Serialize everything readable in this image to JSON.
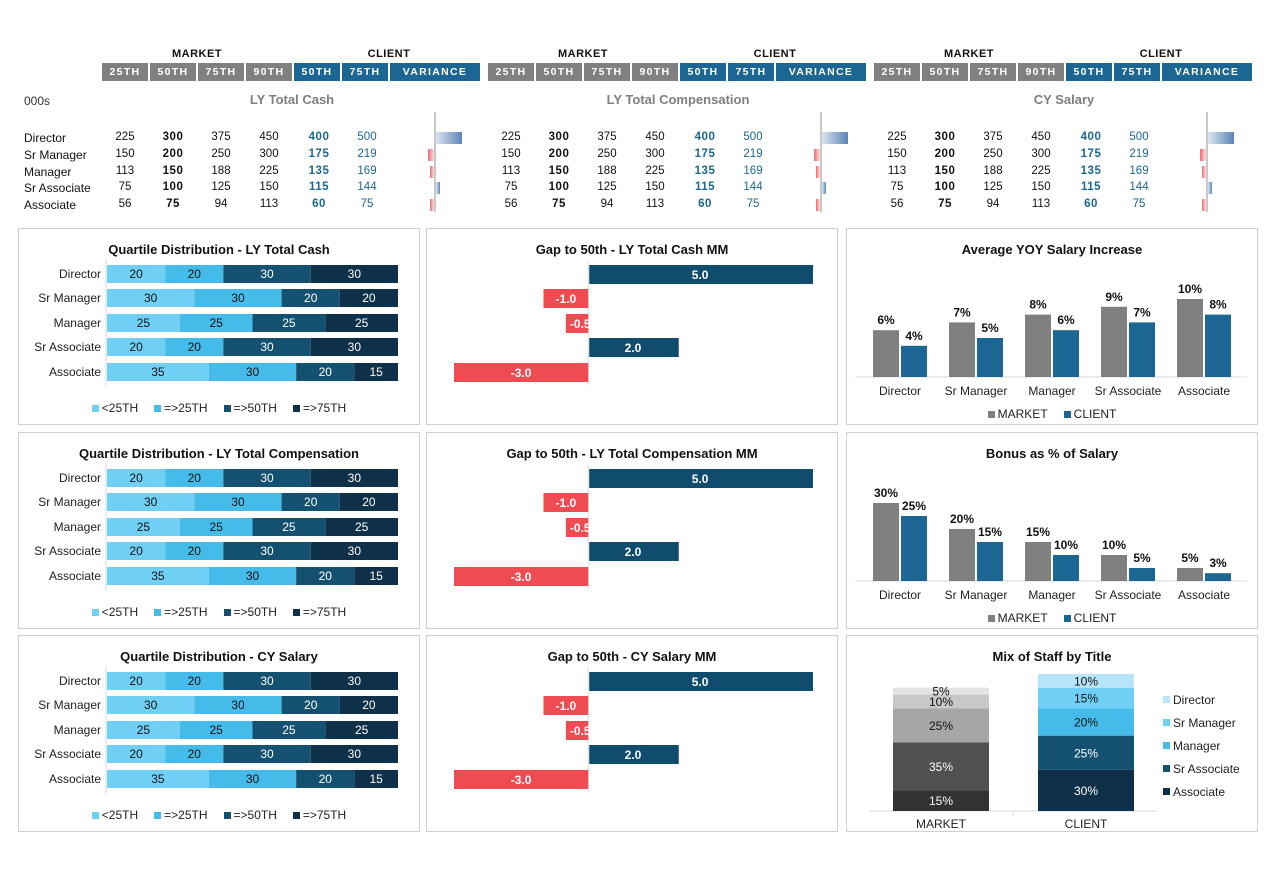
{
  "tables": [
    {
      "title": "LY Total Cash",
      "market_label": "MARKET",
      "client_label": "CLIENT",
      "headers": [
        "25TH",
        "50TH",
        "75TH",
        "90TH",
        "50TH",
        "75TH",
        "VARIANCE"
      ],
      "rows": [
        {
          "title": "Director",
          "m25": "225",
          "m50": "300",
          "m75": "375",
          "m90": "450",
          "c50": "400",
          "c75": "500",
          "variance": 100
        },
        {
          "title": "Sr Manager",
          "m25": "150",
          "m50": "200",
          "m75": "250",
          "m90": "300",
          "c50": "175",
          "c75": "219",
          "variance": -25
        },
        {
          "title": "Manager",
          "m25": "113",
          "m50": "150",
          "m75": "188",
          "m90": "225",
          "c50": "135",
          "c75": "169",
          "variance": -15
        },
        {
          "title": "Sr Associate",
          "m25": "75",
          "m50": "100",
          "m75": "125",
          "m90": "150",
          "c50": "115",
          "c75": "144",
          "variance": 15
        },
        {
          "title": "Associate",
          "m25": "56",
          "m50": "75",
          "m75": "94",
          "m90": "113",
          "c50": "60",
          "c75": "75",
          "variance": -15
        }
      ]
    },
    {
      "title": "LY Total Compensation",
      "market_label": "MARKET",
      "client_label": "CLIENT",
      "headers": [
        "25TH",
        "50TH",
        "75TH",
        "90TH",
        "50TH",
        "75TH",
        "VARIANCE"
      ],
      "rows": [
        {
          "title": "Director",
          "m25": "225",
          "m50": "300",
          "m75": "375",
          "m90": "450",
          "c50": "400",
          "c75": "500",
          "variance": 100
        },
        {
          "title": "Sr Manager",
          "m25": "150",
          "m50": "200",
          "m75": "250",
          "m90": "300",
          "c50": "175",
          "c75": "219",
          "variance": -25
        },
        {
          "title": "Manager",
          "m25": "113",
          "m50": "150",
          "m75": "188",
          "m90": "225",
          "c50": "135",
          "c75": "169",
          "variance": -15
        },
        {
          "title": "Sr Associate",
          "m25": "75",
          "m50": "100",
          "m75": "125",
          "m90": "150",
          "c50": "115",
          "c75": "144",
          "variance": 15
        },
        {
          "title": "Associate",
          "m25": "56",
          "m50": "75",
          "m75": "94",
          "m90": "113",
          "c50": "60",
          "c75": "75",
          "variance": -15
        }
      ]
    },
    {
      "title": "CY Salary",
      "market_label": "MARKET",
      "client_label": "CLIENT",
      "headers": [
        "25TH",
        "50TH",
        "75TH",
        "90TH",
        "50TH",
        "75TH",
        "VARIANCE"
      ],
      "rows": [
        {
          "title": "Director",
          "m25": "225",
          "m50": "300",
          "m75": "375",
          "m90": "450",
          "c50": "400",
          "c75": "500",
          "variance": 100
        },
        {
          "title": "Sr Manager",
          "m25": "150",
          "m50": "200",
          "m75": "250",
          "m90": "300",
          "c50": "175",
          "c75": "219",
          "variance": -25
        },
        {
          "title": "Manager",
          "m25": "113",
          "m50": "150",
          "m75": "188",
          "m90": "225",
          "c50": "135",
          "c75": "169",
          "variance": -15
        },
        {
          "title": "Sr Associate",
          "m25": "75",
          "m50": "100",
          "m75": "125",
          "m90": "150",
          "c50": "115",
          "c75": "144",
          "variance": 15
        },
        {
          "title": "Associate",
          "m25": "56",
          "m50": "75",
          "m75": "94",
          "m90": "113",
          "c50": "60",
          "c75": "75",
          "variance": -15
        }
      ]
    }
  ],
  "units_label": "000s",
  "colors": {
    "market_gray": "#808080",
    "client_blue": "#1b6692",
    "q1": "#6fcff5",
    "q2": "#45bbea",
    "q3": "#145171",
    "q4": "#0e3149",
    "gap_pos": "#0f4c6e",
    "gap_neg": "#ef4b53",
    "positive_var": "#5b84b8",
    "negative_var": "#ef6b72"
  },
  "chart_data": [
    {
      "id": "quartile-ly-cash",
      "type": "bar",
      "orientation": "horizontal-stacked",
      "title": "Quartile Distribution  - LY Total Cash",
      "categories": [
        "Director",
        "Sr Manager",
        "Manager",
        "Sr Associate",
        "Associate"
      ],
      "series": [
        {
          "name": "<25TH",
          "values": [
            20,
            30,
            25,
            20,
            35
          ]
        },
        {
          "name": "=>25TH",
          "values": [
            20,
            30,
            25,
            20,
            30
          ]
        },
        {
          "name": "=>50TH",
          "values": [
            30,
            20,
            25,
            30,
            20
          ]
        },
        {
          "name": "=>75TH",
          "values": [
            30,
            20,
            25,
            30,
            15
          ]
        }
      ],
      "legend": "bottom"
    },
    {
      "id": "gap-ly-cash",
      "type": "bar",
      "orientation": "horizontal",
      "title": "Gap to 50th - LY Total Cash MM",
      "categories": [
        "Director",
        "Sr Manager",
        "Manager",
        "Sr Associate",
        "Associate"
      ],
      "values": [
        5.0,
        -1.0,
        -0.5,
        2.0,
        -3.0
      ],
      "labels": [
        "5.0",
        "-1.0",
        "-0.5",
        "2.0",
        "-3.0"
      ],
      "xlim": [
        -3,
        5
      ]
    },
    {
      "id": "yoy-increase",
      "type": "bar",
      "title": "Average YOY Salary Increase",
      "categories": [
        "Director",
        "Sr Manager",
        "Manager",
        "Sr Associate",
        "Associate"
      ],
      "series": [
        {
          "name": "MARKET",
          "values": [
            6,
            7,
            8,
            9,
            10
          ]
        },
        {
          "name": "CLIENT",
          "values": [
            4,
            5,
            6,
            7,
            8
          ]
        }
      ],
      "value_suffix": "%",
      "ylim": [
        0,
        10
      ],
      "legend": "bottom"
    },
    {
      "id": "quartile-ly-comp",
      "type": "bar",
      "orientation": "horizontal-stacked",
      "title": "Quartile Distribution  - LY Total Compensation",
      "categories": [
        "Director",
        "Sr Manager",
        "Manager",
        "Sr Associate",
        "Associate"
      ],
      "series": [
        {
          "name": "<25TH",
          "values": [
            20,
            30,
            25,
            20,
            35
          ]
        },
        {
          "name": "=>25TH",
          "values": [
            20,
            30,
            25,
            20,
            30
          ]
        },
        {
          "name": "=>50TH",
          "values": [
            30,
            20,
            25,
            30,
            20
          ]
        },
        {
          "name": "=>75TH",
          "values": [
            30,
            20,
            25,
            30,
            15
          ]
        }
      ],
      "legend": "bottom"
    },
    {
      "id": "gap-ly-comp",
      "type": "bar",
      "orientation": "horizontal",
      "title": "Gap to 50th - LY Total Compensation MM",
      "categories": [
        "Director",
        "Sr Manager",
        "Manager",
        "Sr Associate",
        "Associate"
      ],
      "values": [
        5.0,
        -1.0,
        -0.5,
        2.0,
        -3.0
      ],
      "labels": [
        "5.0",
        "-1.0",
        "-0.5",
        "2.0",
        "-3.0"
      ],
      "xlim": [
        -3,
        5
      ]
    },
    {
      "id": "bonus-pct",
      "type": "bar",
      "title": "Bonus as % of Salary",
      "categories": [
        "Director",
        "Sr Manager",
        "Manager",
        "Sr Associate",
        "Associate"
      ],
      "series": [
        {
          "name": "MARKET",
          "values": [
            30,
            20,
            15,
            10,
            5
          ]
        },
        {
          "name": "CLIENT",
          "values": [
            25,
            15,
            10,
            5,
            3
          ]
        }
      ],
      "value_suffix": "%",
      "ylim": [
        0,
        30
      ],
      "legend": "bottom"
    },
    {
      "id": "quartile-cy-salary",
      "type": "bar",
      "orientation": "horizontal-stacked",
      "title": "Quartile Distribution  - CY Salary",
      "categories": [
        "Director",
        "Sr Manager",
        "Manager",
        "Sr Associate",
        "Associate"
      ],
      "series": [
        {
          "name": "<25TH",
          "values": [
            20,
            30,
            25,
            20,
            35
          ]
        },
        {
          "name": "=>25TH",
          "values": [
            20,
            30,
            25,
            20,
            30
          ]
        },
        {
          "name": "=>50TH",
          "values": [
            30,
            20,
            25,
            30,
            20
          ]
        },
        {
          "name": "=>75TH",
          "values": [
            30,
            20,
            25,
            30,
            15
          ]
        }
      ],
      "legend": "bottom"
    },
    {
      "id": "gap-cy-salary",
      "type": "bar",
      "orientation": "horizontal",
      "title": "Gap to 50th - CY Salary MM",
      "categories": [
        "Director",
        "Sr Manager",
        "Manager",
        "Sr Associate",
        "Associate"
      ],
      "values": [
        5.0,
        -1.0,
        -0.5,
        2.0,
        -3.0
      ],
      "labels": [
        "5.0",
        "-1.0",
        "-0.5",
        "2.0",
        "-3.0"
      ],
      "xlim": [
        -3,
        5
      ]
    },
    {
      "id": "staff-mix",
      "type": "bar",
      "orientation": "vertical-stacked-100",
      "title": "Mix of Staff by Title",
      "categories": [
        "MARKET",
        "CLIENT"
      ],
      "series": [
        {
          "name": "Associate",
          "values": [
            15,
            30
          ]
        },
        {
          "name": "Sr Associate",
          "values": [
            35,
            25
          ]
        },
        {
          "name": "Manager",
          "values": [
            25,
            20
          ]
        },
        {
          "name": "Sr Manager",
          "values": [
            10,
            15
          ]
        },
        {
          "name": "Director",
          "values": [
            5,
            10
          ]
        }
      ],
      "legend_order": [
        "Director",
        "Sr Manager",
        "Manager",
        "Sr Associate",
        "Associate"
      ],
      "value_suffix": "%",
      "legend": "right"
    }
  ]
}
